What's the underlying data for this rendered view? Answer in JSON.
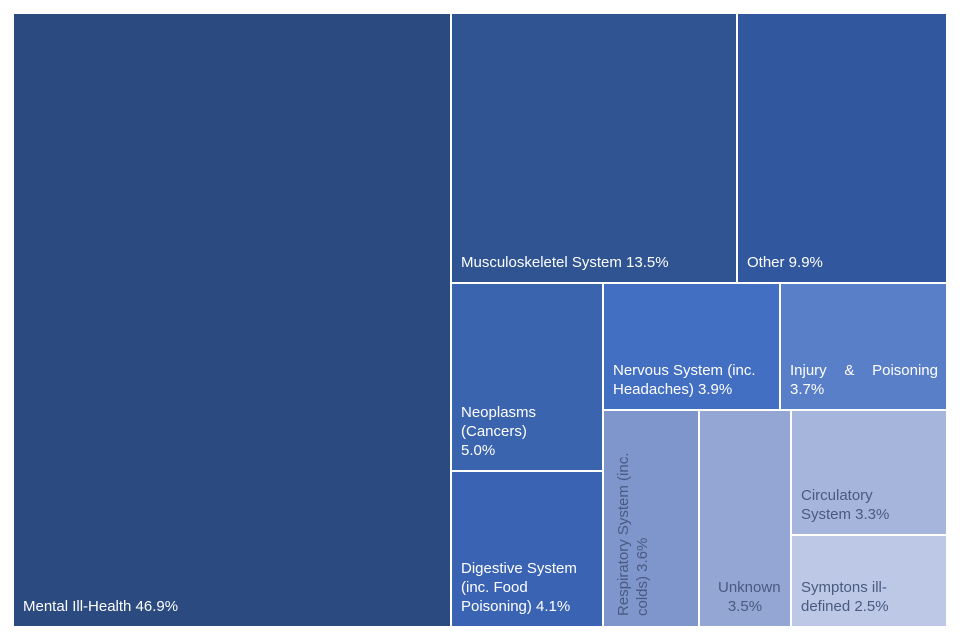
{
  "chart_data": {
    "type": "treemap",
    "title": "",
    "items": [
      {
        "name": "Mental Ill-Health",
        "value": 46.9,
        "label": "Mental Ill-Health 46.9%",
        "color": "#2b4a7f",
        "text_color": "#ffffff"
      },
      {
        "name": "Musculoskeletel System",
        "value": 13.5,
        "label": "Musculoskeletel System 13.5%",
        "color": "#2f5491",
        "text_color": "#ffffff"
      },
      {
        "name": "Other",
        "value": 9.9,
        "label": "Other 9.9%",
        "color": "#31589e",
        "text_color": "#ffffff"
      },
      {
        "name": "Neoplasms (Cancers)",
        "value": 5.0,
        "label": "Neoplasms (Cancers) 5.0%",
        "color": "#3a64ad",
        "text_color": "#ffffff"
      },
      {
        "name": "Digestive System (inc. Food Poisoning)",
        "value": 4.1,
        "label": "Digestive System (inc. Food Poisoning) 4.1%",
        "color": "#3a64b3",
        "text_color": "#ffffff"
      },
      {
        "name": "Nervous System (inc. Headaches)",
        "value": 3.9,
        "label": "Nervous System (inc. Headaches) 3.9%",
        "color": "#436fc3",
        "text_color": "#ffffff"
      },
      {
        "name": "Injury & Poisoning",
        "value": 3.7,
        "label": "Injury & Poisoning 3.7%",
        "color": "#5a7fc9",
        "text_color": "#ffffff"
      },
      {
        "name": "Respiratory System (inc. colds)",
        "value": 3.6,
        "label": "Respiratory System (inc. colds) 3.6%",
        "color": "#7f96cc",
        "text_color": "#4a5a80"
      },
      {
        "name": "Unknown",
        "value": 3.5,
        "label": "Unknown 3.5%",
        "color": "#93a6d4",
        "text_color": "#4a5a80"
      },
      {
        "name": "Circulatory System",
        "value": 3.3,
        "label": "Circulatory System 3.3%",
        "color": "#a6b5dc",
        "text_color": "#4a5a80"
      },
      {
        "name": "Symptons ill-defined",
        "value": 2.5,
        "label": "Symptons ill-defined 2.5%",
        "color": "#bcc8e6",
        "text_color": "#4a5a80"
      }
    ]
  }
}
